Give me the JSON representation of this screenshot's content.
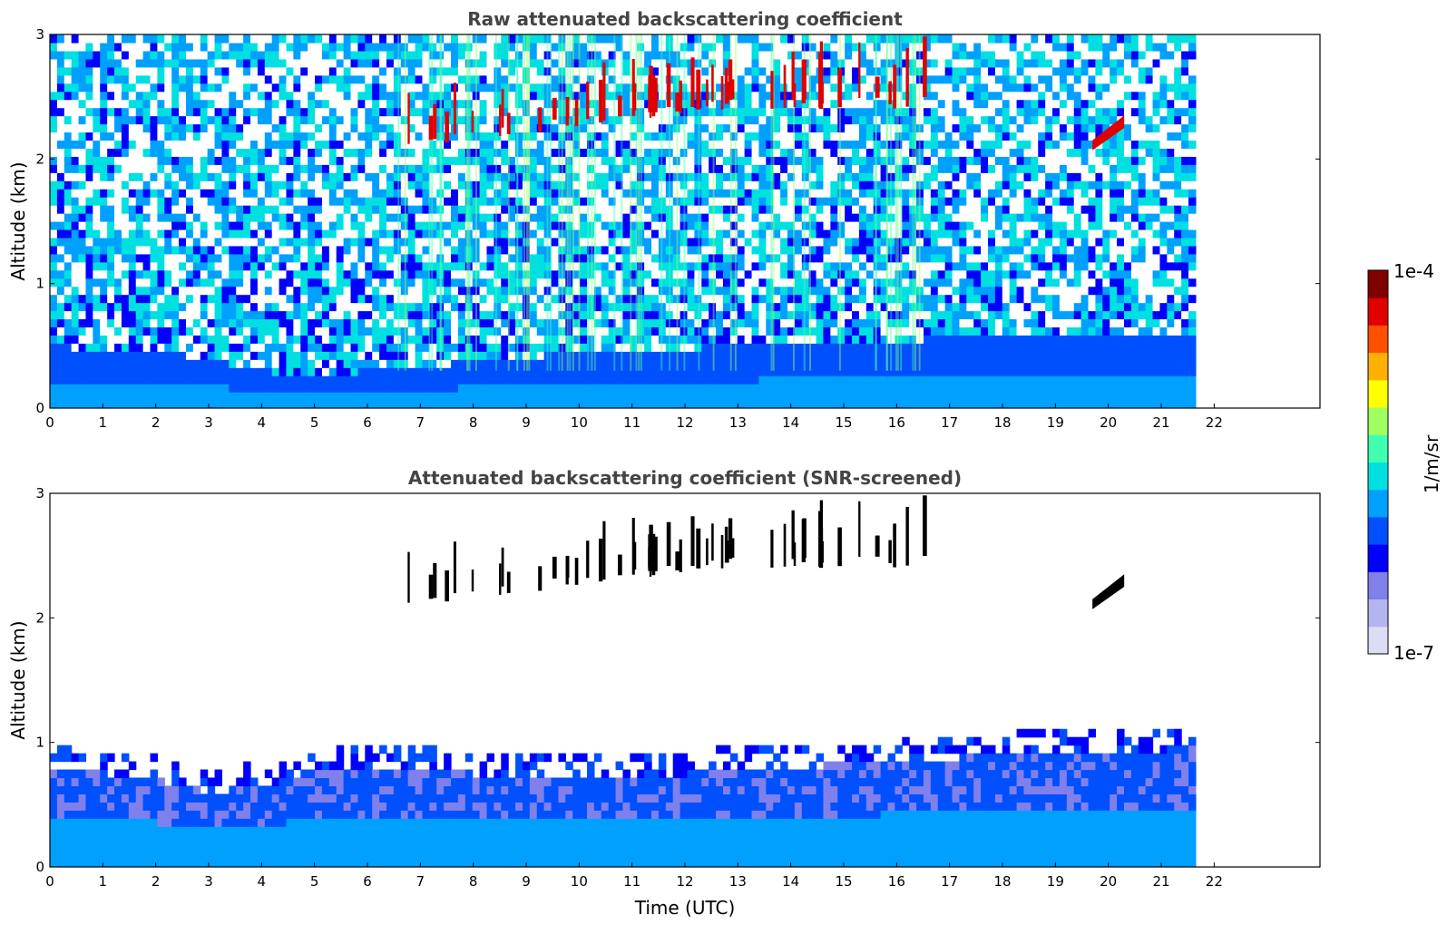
{
  "chart_data": [
    {
      "type": "heatmap",
      "title": "Raw attenuated backscattering coefficient",
      "xlabel": "",
      "ylabel": "Altitude (km)",
      "xlim": [
        0,
        24
      ],
      "ylim": [
        0,
        3
      ],
      "xticks": [
        "0",
        "1",
        "2",
        "3",
        "4",
        "5",
        "6",
        "7",
        "8",
        "9",
        "10",
        "11",
        "12",
        "13",
        "14",
        "15",
        "16",
        "17",
        "18",
        "19",
        "20",
        "21",
        "22"
      ],
      "yticks": [
        "0",
        "1",
        "2",
        "3"
      ],
      "data_end_time": 21.65,
      "features": [
        {
          "name": "boundary-layer",
          "altitude_top": [
            0.5,
            0.45,
            0.4,
            0.3,
            0.25,
            0.3,
            0.45,
            0.55,
            0.6
          ],
          "at_time": [
            0,
            2,
            3,
            4,
            5,
            6,
            10,
            16,
            21.6
          ]
        },
        {
          "name": "cloud-layer",
          "time_range": [
            6.5,
            16.5
          ],
          "altitude_range": [
            1.8,
            3.0
          ]
        },
        {
          "name": "cloud-patch",
          "time_range": [
            19.7,
            20.3
          ],
          "altitude_range": [
            2.1,
            2.35
          ]
        }
      ]
    },
    {
      "type": "heatmap",
      "title": "Attenuated backscattering coefficient (SNR-screened)",
      "xlabel": "Time (UTC)",
      "ylabel": "Altitude (km)",
      "xlim": [
        0,
        24
      ],
      "ylim": [
        0,
        3
      ],
      "xticks": [
        "0",
        "1",
        "2",
        "3",
        "4",
        "5",
        "6",
        "7",
        "8",
        "9",
        "10",
        "11",
        "12",
        "13",
        "14",
        "15",
        "16",
        "17",
        "18",
        "19",
        "20",
        "21",
        "22"
      ],
      "yticks": [
        "0",
        "1",
        "2",
        "3"
      ],
      "data_end_time": 21.65,
      "features": [
        {
          "name": "screened-boundary-layer",
          "altitude_top": [
            0.9,
            0.85,
            0.8,
            0.7,
            0.75,
            0.85,
            0.9,
            0.85,
            0.8,
            0.9,
            1.0,
            1.05
          ],
          "at_time": [
            0,
            1,
            2,
            3,
            4,
            5,
            6,
            8,
            10,
            14,
            18,
            21.6
          ]
        },
        {
          "name": "screened-cloud-layer",
          "time_range": [
            6.5,
            16.5
          ],
          "altitude_range": [
            1.8,
            3.0
          ]
        },
        {
          "name": "screened-cloud-patch",
          "time_range": [
            19.7,
            20.3
          ],
          "altitude_range": [
            2.1,
            2.35
          ]
        }
      ]
    }
  ],
  "colorbar": {
    "label": "1/m/sr",
    "max_label": "1e-4",
    "min_label": "1e-7",
    "scale": "log",
    "colormap": "jet",
    "colors": [
      "#dcdcf5",
      "#b4b4f0",
      "#8080ec",
      "#0000ff",
      "#0050ff",
      "#00a0ff",
      "#00e0e0",
      "#40ffb0",
      "#a0ff60",
      "#ffff00",
      "#ffb000",
      "#ff5000",
      "#e00000",
      "#800000"
    ]
  }
}
